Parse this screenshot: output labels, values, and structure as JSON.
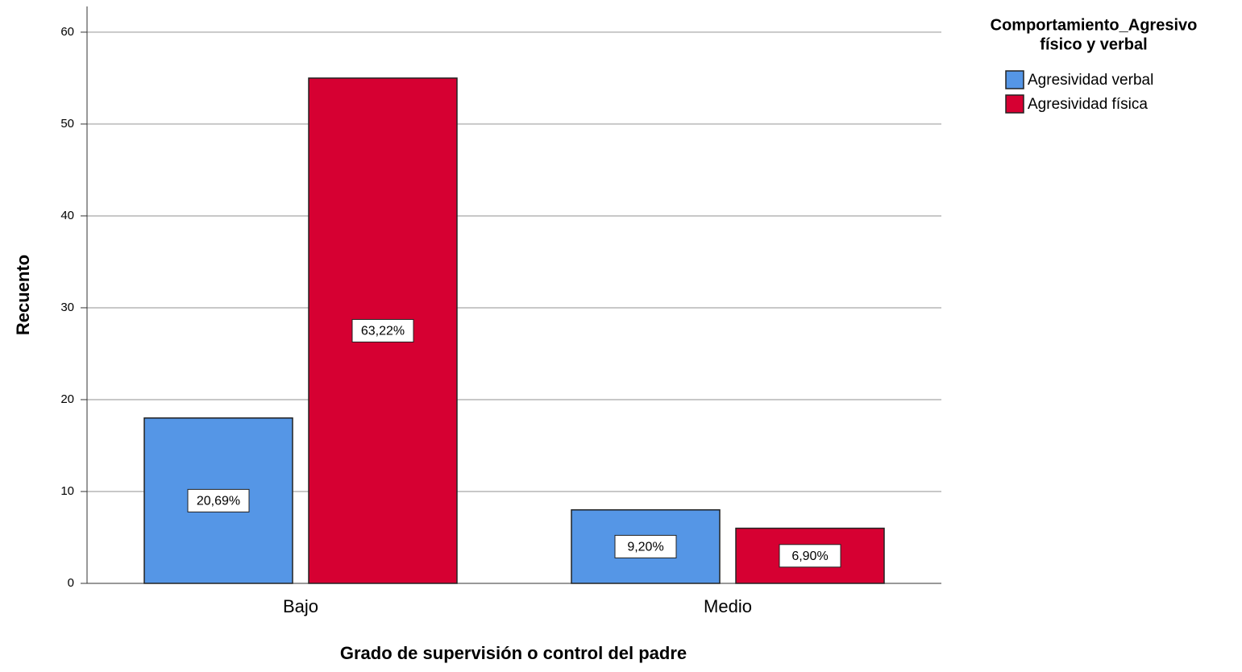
{
  "chart_data": {
    "type": "bar",
    "x_label": "Grado de supervisión o control del padre",
    "y_label": "Recuento",
    "legend_title": [
      "Comportamiento_Agresivo",
      "físico y verbal"
    ],
    "legend_position": "right",
    "categories": [
      "Bajo",
      "Medio"
    ],
    "series": [
      {
        "name": "Agresividad verbal",
        "color": "#5596e6",
        "values": [
          18,
          8
        ],
        "data_labels": [
          "20,69%",
          "9,20%"
        ]
      },
      {
        "name": "Agresividad física",
        "color": "#d60032",
        "values": [
          55,
          6
        ],
        "data_labels": [
          "63,22%",
          "6,90%"
        ]
      }
    ],
    "ylim": [
      0,
      62.8
    ],
    "yticks": [
      0,
      10,
      20,
      30,
      40,
      50,
      60
    ],
    "grid": true
  }
}
